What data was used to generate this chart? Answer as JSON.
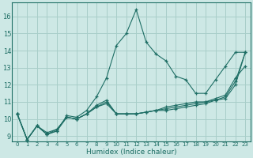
{
  "xlabel": "Humidex (Indice chaleur)",
  "background_color": "#cde8e5",
  "grid_color": "#a8cec9",
  "line_color": "#1e6e65",
  "xlim": [
    -0.5,
    23.5
  ],
  "ylim": [
    8.7,
    16.8
  ],
  "yticks": [
    9,
    10,
    11,
    12,
    13,
    14,
    15,
    16
  ],
  "xticks": [
    0,
    1,
    2,
    3,
    4,
    5,
    6,
    7,
    8,
    9,
    10,
    11,
    12,
    13,
    14,
    15,
    16,
    17,
    18,
    19,
    20,
    21,
    22,
    23
  ],
  "series": [
    [
      10.3,
      8.8,
      9.6,
      9.1,
      9.3,
      10.2,
      10.1,
      10.5,
      11.3,
      12.4,
      14.3,
      15.0,
      16.4,
      14.5,
      13.8,
      13.4,
      12.5,
      12.3,
      11.5,
      11.5,
      12.3,
      13.1,
      13.9,
      13.9
    ],
    [
      10.3,
      8.8,
      9.6,
      9.1,
      9.3,
      10.1,
      10.0,
      10.3,
      10.8,
      11.1,
      10.3,
      10.3,
      10.3,
      10.4,
      10.5,
      10.7,
      10.8,
      10.9,
      11.0,
      11.0,
      11.2,
      11.4,
      12.4,
      13.1
    ],
    [
      10.3,
      8.8,
      9.6,
      9.1,
      9.4,
      10.1,
      10.0,
      10.3,
      10.7,
      11.0,
      10.3,
      10.3,
      10.3,
      10.4,
      10.5,
      10.6,
      10.7,
      10.8,
      10.9,
      11.0,
      11.1,
      11.3,
      12.2,
      13.9
    ],
    [
      10.3,
      8.8,
      9.6,
      9.2,
      9.4,
      10.1,
      10.0,
      10.3,
      10.7,
      10.9,
      10.3,
      10.3,
      10.3,
      10.4,
      10.5,
      10.5,
      10.6,
      10.7,
      10.8,
      10.9,
      11.1,
      11.2,
      12.0,
      13.9
    ]
  ]
}
